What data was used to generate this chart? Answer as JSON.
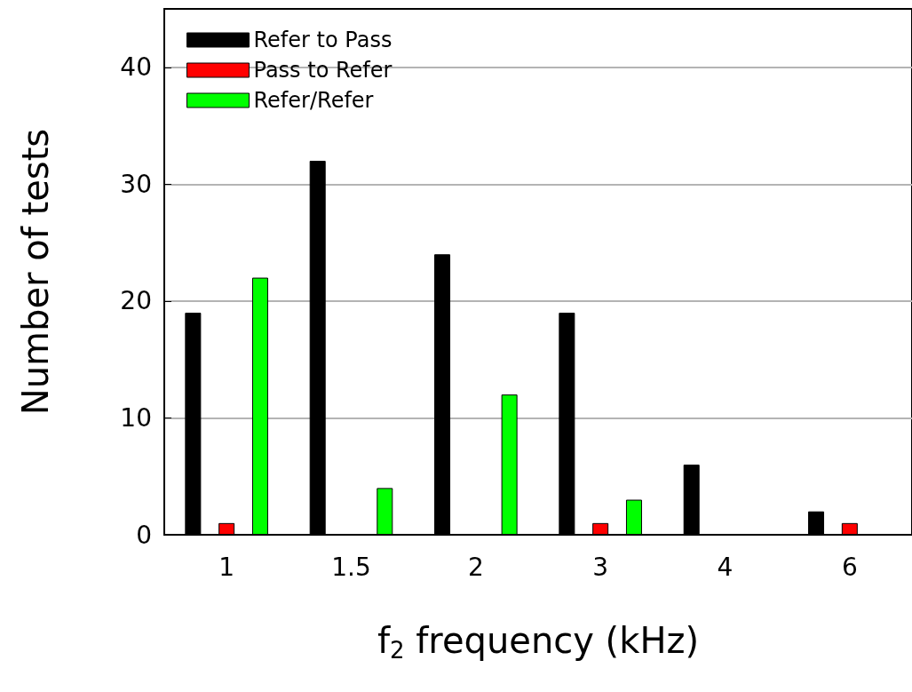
{
  "chart_data": {
    "type": "bar",
    "xlabel": "f$_{2}$ frequency (kHz)",
    "ylabel": "Number of tests",
    "categories": [
      "1",
      "1.5",
      "2",
      "3",
      "4",
      "6"
    ],
    "series": [
      {
        "name": "Refer to Pass",
        "color": "#000000",
        "values": [
          19,
          32,
          24,
          19,
          6,
          2
        ]
      },
      {
        "name": "Pass to Refer",
        "color": "#ff0000",
        "values": [
          1,
          null,
          null,
          1,
          null,
          1
        ]
      },
      {
        "name": "Refer/Refer",
        "color": "#00ff00",
        "values": [
          22,
          4,
          12,
          3,
          null,
          null
        ]
      }
    ],
    "ylim": [
      0,
      45
    ],
    "yticks": [
      0,
      10,
      20,
      30,
      40
    ],
    "grid": "y",
    "legend": "top left"
  }
}
